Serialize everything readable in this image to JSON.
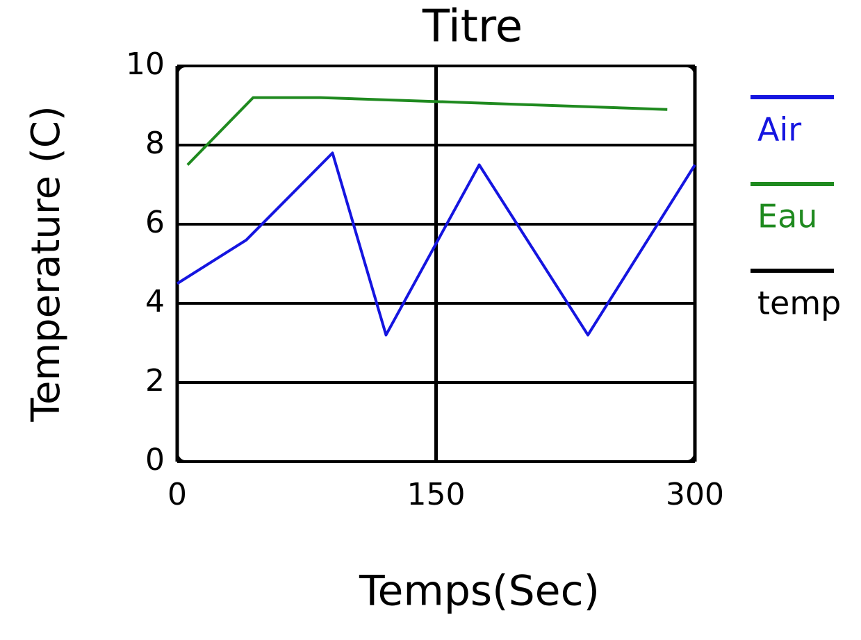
{
  "chart_data": {
    "type": "line",
    "title": "Titre",
    "xlabel": "Temps(Sec)",
    "ylabel": "Temperature (C)",
    "xlim": [
      0,
      300
    ],
    "xticks": [
      0,
      150,
      300
    ],
    "ylim": [
      0,
      10
    ],
    "yticks": [
      0,
      2,
      4,
      6,
      8,
      10
    ],
    "grid": true,
    "series": [
      {
        "name": "Air",
        "color": "#1515e0",
        "x": [
          0,
          40,
          90,
          121,
          175,
          238,
          300
        ],
        "values": [
          4.5,
          5.6,
          7.8,
          3.2,
          7.5,
          3.2,
          7.5
        ]
      },
      {
        "name": "Eau",
        "color": "#1f8a1f",
        "x": [
          6,
          44,
          83,
          284
        ],
        "values": [
          7.5,
          9.2,
          9.2,
          8.9
        ]
      },
      {
        "name": "temp",
        "color": "#000000",
        "x": [
          0
        ],
        "values": [
          null
        ]
      }
    ]
  }
}
